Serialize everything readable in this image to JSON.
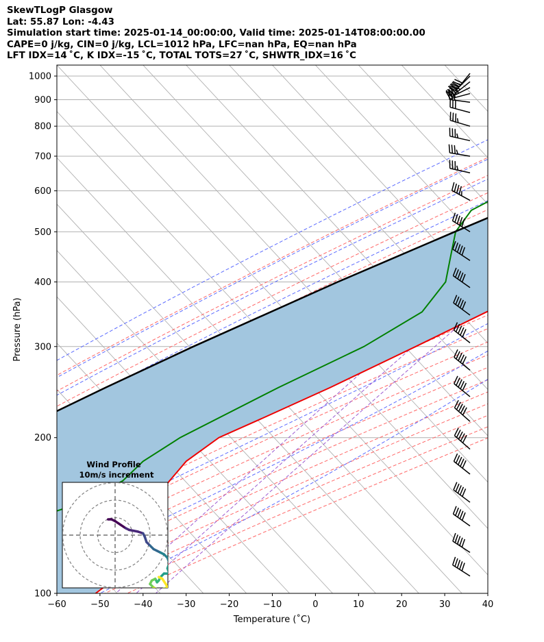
{
  "header": {
    "line1": "SkewTLogP Glasgow",
    "line2": "Lat: 55.87   Lon: -4.43",
    "line3": "Simulation start time: 2025-01-14_00:00:00, Valid time: 2025-01-14T08:00:00.00",
    "line4": "CAPE=0 j/kg, CIN=0 j/kg, LCL=1012 hPa, LFC=nan hPa, EQ=nan hPa",
    "line5": "LFT IDX=14 ˚C, K IDX=-15 ˚C, TOTAL TOTS=27 ˚C, SHWTR_IDX=16 ˚C"
  },
  "chart_data": {
    "type": "skewt",
    "xlabel": "Temperature (˚C)",
    "ylabel": "Pressure (hPa)",
    "xlim": [
      -60,
      40
    ],
    "ylim": [
      1050,
      100
    ],
    "x_ticks": [
      "−60",
      "−50",
      "−40",
      "−30",
      "−20",
      "−10",
      "0",
      "10",
      "20",
      "30",
      "40"
    ],
    "y_ticks": [
      "100",
      "200",
      "300",
      "400",
      "500",
      "600",
      "700",
      "800",
      "900",
      "1000"
    ],
    "y_tick_values": [
      100,
      200,
      300,
      400,
      500,
      600,
      700,
      800,
      900,
      1000
    ],
    "colors": {
      "temperature": "#ee0000",
      "dewpoint": "#008000",
      "parcel": "#000000",
      "shade": "#a2c6df",
      "dry_adiabat": "#ff6666",
      "moist_adiabat": "#5a6aff",
      "mixing_ratio": "#9b59d0",
      "isotherm": "#b0b0b0"
    },
    "temperature": [
      [
        1014,
        9.8
      ],
      [
        1000,
        9.3
      ],
      [
        950,
        8.6
      ],
      [
        925,
        8.3
      ],
      [
        900,
        8.3
      ],
      [
        850,
        9.0
      ],
      [
        800,
        9.8
      ],
      [
        750,
        10.3
      ],
      [
        700,
        10.5
      ],
      [
        650,
        10.5
      ],
      [
        600,
        10.5
      ],
      [
        550,
        9.0
      ],
      [
        500,
        4.5
      ],
      [
        450,
        -4.0
      ],
      [
        400,
        -12.0
      ],
      [
        350,
        -21.0
      ],
      [
        300,
        -30.0
      ],
      [
        250,
        -41.0
      ],
      [
        220,
        -49.5
      ],
      [
        200,
        -56.0
      ],
      [
        180,
        -58.5
      ],
      [
        160,
        -58.0
      ],
      [
        150,
        -58.5
      ],
      [
        140,
        -56.5
      ],
      [
        130,
        -52.5
      ],
      [
        120,
        -49.5
      ],
      [
        110,
        -49.0
      ],
      [
        100,
        -51.0
      ]
    ],
    "dewpoint": [
      [
        1014,
        9.5
      ],
      [
        1000,
        8.5
      ],
      [
        950,
        4.0
      ],
      [
        925,
        1.0
      ],
      [
        900,
        -3.5
      ],
      [
        850,
        -11.0
      ],
      [
        800,
        -19.0
      ],
      [
        750,
        -27.0
      ],
      [
        700,
        -33.0
      ],
      [
        650,
        -38.0
      ],
      [
        600,
        -42.0
      ],
      [
        550,
        -46.5
      ],
      [
        500,
        -45.5
      ],
      [
        450,
        -41.5
      ],
      [
        400,
        -37.0
      ],
      [
        350,
        -36.0
      ],
      [
        300,
        -42.0
      ],
      [
        250,
        -53.0
      ],
      [
        200,
        -65.0
      ],
      [
        180,
        -68.5
      ],
      [
        165,
        -69.0
      ],
      [
        150,
        -73.5
      ],
      [
        130,
        -89.5
      ],
      [
        100,
        -82.0
      ]
    ],
    "parcel": [
      [
        1014,
        9.8
      ],
      [
        1000,
        8.6
      ],
      [
        950,
        4.4
      ],
      [
        900,
        0.0
      ],
      [
        850,
        -4.5
      ],
      [
        800,
        -9.4
      ],
      [
        700,
        -19.9
      ],
      [
        600,
        -31.9
      ],
      [
        500,
        -45.7
      ],
      [
        400,
        -62.0
      ],
      [
        300,
        -81.6
      ],
      [
        250,
        -93.1
      ],
      [
        200,
        -106.3
      ],
      [
        150,
        -121.8
      ],
      [
        100,
        -140.3
      ]
    ],
    "dry_adiabats_thetaK": [
      243,
      253,
      263,
      273,
      283,
      293,
      303,
      313,
      323,
      333,
      343,
      353,
      363,
      373,
      383,
      393,
      403,
      413,
      423,
      433,
      443
    ],
    "moist_adiabats_C": [
      -40,
      -30,
      -20,
      -10,
      0,
      10,
      15,
      20,
      25,
      30,
      35
    ],
    "mixing_ratios_gkg": [
      0.6,
      1.0,
      1.6
    ],
    "wind_barbs": [
      {
        "p": 1012,
        "u": 13,
        "v": 16
      },
      {
        "p": 1000,
        "u": 14,
        "v": 14
      },
      {
        "p": 975,
        "u": 15,
        "v": 12
      },
      {
        "p": 950,
        "u": 16,
        "v": 8
      },
      {
        "p": 925,
        "u": 15,
        "v": 4
      },
      {
        "p": 890,
        "u": 15,
        "v": -2
      },
      {
        "p": 850,
        "u": 15,
        "v": -4
      },
      {
        "p": 800,
        "u": 17,
        "v": -5
      },
      {
        "p": 750,
        "u": 18,
        "v": -4
      },
      {
        "p": 700,
        "u": 18,
        "v": -3
      },
      {
        "p": 650,
        "u": 18,
        "v": -4
      },
      {
        "p": 575,
        "u": 22,
        "v": -12
      },
      {
        "p": 500,
        "u": 24,
        "v": -15
      },
      {
        "p": 440,
        "u": 26,
        "v": -17
      },
      {
        "p": 390,
        "u": 27,
        "v": -19
      },
      {
        "p": 345,
        "u": 27,
        "v": -20
      },
      {
        "p": 305,
        "u": 28,
        "v": -22
      },
      {
        "p": 270,
        "u": 27,
        "v": -22
      },
      {
        "p": 240,
        "u": 27,
        "v": -22
      },
      {
        "p": 215,
        "u": 25,
        "v": -22
      },
      {
        "p": 190,
        "u": 24,
        "v": -21
      },
      {
        "p": 170,
        "u": 24,
        "v": -19
      },
      {
        "p": 150,
        "u": 24,
        "v": -18
      },
      {
        "p": 135,
        "u": 24,
        "v": -17
      },
      {
        "p": 120,
        "u": 23,
        "v": -15
      },
      {
        "p": 108,
        "u": 22,
        "v": -14
      }
    ],
    "hodograph": {
      "title": "Wind Profile",
      "subtitle": "10m/s increment",
      "rings_ms": [
        10,
        20,
        30
      ],
      "points": [
        [
          -4,
          9
        ],
        [
          -2,
          9
        ],
        [
          0,
          8
        ],
        [
          3,
          6
        ],
        [
          6,
          4
        ],
        [
          8,
          3
        ],
        [
          13,
          2
        ],
        [
          16,
          1
        ],
        [
          17,
          -1
        ],
        [
          18,
          -4
        ],
        [
          20,
          -6
        ],
        [
          22,
          -8
        ],
        [
          24,
          -9
        ],
        [
          26,
          -10
        ],
        [
          28,
          -11
        ],
        [
          30,
          -13
        ],
        [
          31,
          -16
        ],
        [
          30,
          -19
        ],
        [
          31,
          -22
        ],
        [
          28,
          -22
        ],
        [
          26,
          -24
        ],
        [
          25,
          -26
        ],
        [
          24,
          -27
        ],
        [
          23,
          -25
        ],
        [
          21,
          -26
        ],
        [
          20,
          -28
        ],
        [
          22,
          -30
        ],
        [
          24,
          -31
        ],
        [
          27,
          -31
        ],
        [
          30,
          -30
        ],
        [
          29,
          -28
        ],
        [
          27,
          -25
        ],
        [
          25,
          -24
        ]
      ]
    }
  }
}
